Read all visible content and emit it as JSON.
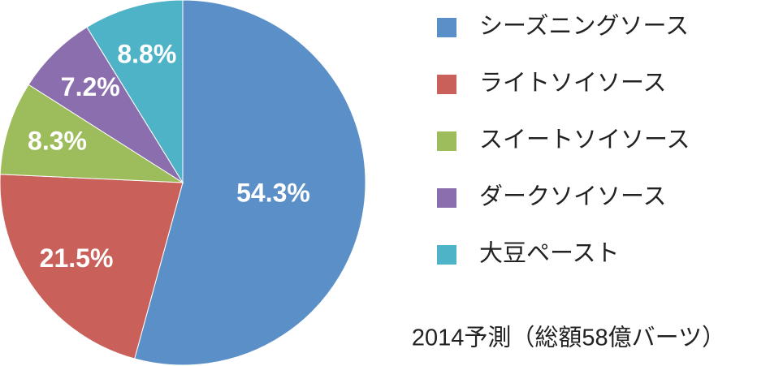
{
  "chart_data": {
    "type": "pie",
    "title": "2014予測（総額58億バーツ）",
    "categories": [
      "シーズニングソース",
      "ライトソイソース",
      "スイートソイソース",
      "ダークソイソース",
      "大豆ペースト"
    ],
    "values": [
      54.3,
      21.5,
      8.3,
      7.2,
      8.8
    ],
    "value_labels": [
      "54.3%",
      "21.5%",
      "8.3%",
      "7.2%",
      "8.8%"
    ],
    "colors": [
      "#5b8fc7",
      "#c9605a",
      "#9dbd5c",
      "#8b6eae",
      "#4fb3c8"
    ],
    "legend": "right"
  }
}
